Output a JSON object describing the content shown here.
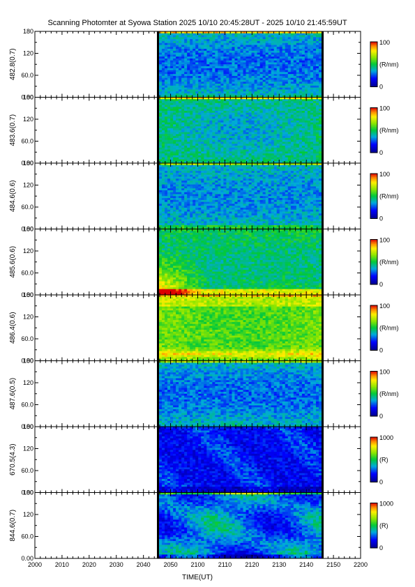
{
  "chart_data": {
    "type": "heatmap",
    "title": "Scanning Photomter at Syowa Station 2025 10/10 20:45:28UT - 2025 10/10 21:45:59UT",
    "xlabel": "TIME(UT)",
    "x_ticks": [
      "2000",
      "2010",
      "2020",
      "2030",
      "2040",
      "2050",
      "2100",
      "2110",
      "2120",
      "2130",
      "2140",
      "2150",
      "2200"
    ],
    "xlim": [
      "2000",
      "2200"
    ],
    "data_range": [
      "2045",
      "2146"
    ],
    "y_ticks": [
      "0.00",
      "60.0",
      "120",
      "180"
    ],
    "ylim": [
      0,
      180
    ],
    "panels": [
      {
        "ylabel": "482.8(0.7)",
        "colorbar": {
          "max": "100",
          "min": "0",
          "unit": "(R/nm)"
        },
        "pattern": "blue-green mottled, red stripe at 180"
      },
      {
        "ylabel": "483.6(0.7)",
        "colorbar": {
          "max": "100",
          "min": "0",
          "unit": "(R/nm)"
        },
        "pattern": "green with bluer center"
      },
      {
        "ylabel": "484.6(0.6)",
        "colorbar": {
          "max": "100",
          "min": "0",
          "unit": "(R/nm)"
        },
        "pattern": "green-blue mottled"
      },
      {
        "ylabel": "485.6(0.6)",
        "colorbar": {
          "max": "100",
          "min": "0",
          "unit": "(R/nm)"
        },
        "pattern": "red/yellow at low elevation early, green later"
      },
      {
        "ylabel": "486.4(0.6)",
        "colorbar": {
          "max": "100",
          "min": "0",
          "unit": "(R/nm)"
        },
        "pattern": "yellow-green with red/yellow band near bottom and top"
      },
      {
        "ylabel": "487.6(0.5)",
        "colorbar": {
          "max": "100",
          "min": "0",
          "unit": "(R/nm)"
        },
        "pattern": "green-blue mottled"
      },
      {
        "ylabel": "670.5(4.3)",
        "colorbar": {
          "max": "1000",
          "min": "0",
          "unit": "(R)"
        },
        "pattern": "mostly blue with faint cyan streaks"
      },
      {
        "ylabel": "844.6(0.7)",
        "colorbar": {
          "max": "1000",
          "min": "0",
          "unit": "(R)"
        },
        "pattern": "blue with green/yellow patches"
      }
    ]
  }
}
